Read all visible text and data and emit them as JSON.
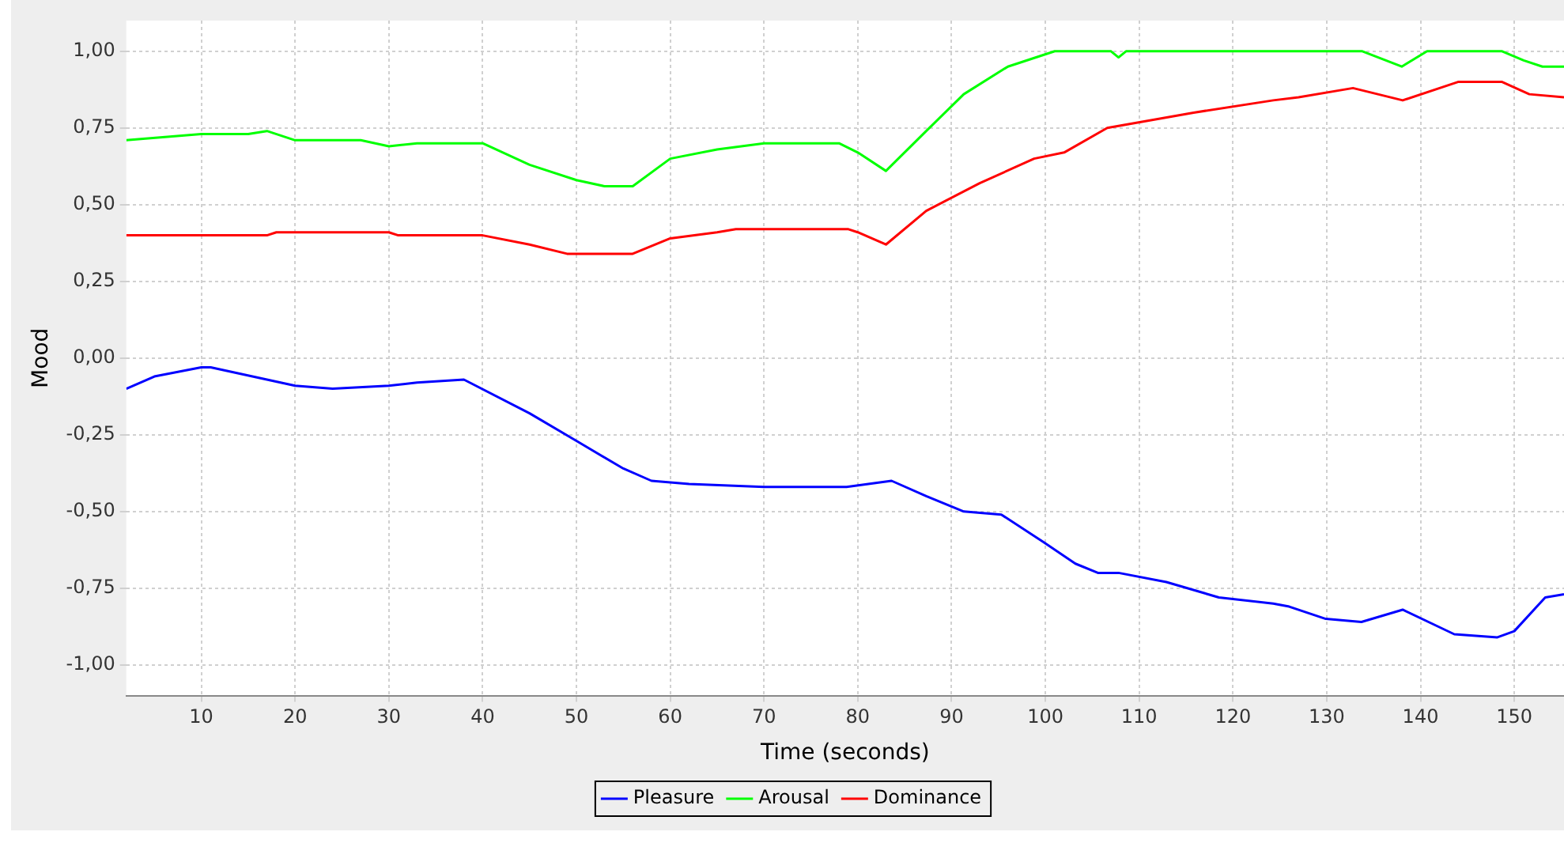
{
  "chart_data": {
    "type": "line",
    "xlabel": "Time (seconds)",
    "ylabel": "Mood",
    "xlim": [
      2,
      155.3
    ],
    "xticks": [
      10,
      20,
      30,
      40,
      50,
      60,
      70,
      80,
      90,
      100,
      110,
      120,
      130,
      140,
      150
    ],
    "ylim": [
      -1.1,
      1.1
    ],
    "yticks": [
      {
        "value": -1,
        "label": "-1,00"
      },
      {
        "value": -0.75,
        "label": "-0,75"
      },
      {
        "value": -0.5,
        "label": "-0,50"
      },
      {
        "value": -0.25,
        "label": "-0,25"
      },
      {
        "value": 0,
        "label": "0,00"
      },
      {
        "value": 0.25,
        "label": "0,25"
      },
      {
        "value": 0.5,
        "label": "0,50"
      },
      {
        "value": 0.75,
        "label": "0,75"
      },
      {
        "value": 1,
        "label": "1,00"
      }
    ],
    "grid": true,
    "legend": "bottom",
    "marker": "none",
    "line_style": "solid",
    "series": [
      {
        "name": "Pleasure",
        "color": "#0000ff",
        "x": [
          2,
          5,
          10,
          11,
          20,
          24,
          30,
          33,
          38,
          45,
          50,
          55,
          58,
          62,
          70,
          78.8,
          83.6,
          87.3,
          91.3,
          95.3,
          99.8,
          103.2,
          105.6,
          107.8,
          112.9,
          118.5,
          124.3,
          126,
          129.9,
          133.7,
          138.1,
          143.6,
          148.2,
          150,
          153.3,
          155.3
        ],
        "values": [
          -0.1,
          -0.06,
          -0.03,
          -0.03,
          -0.09,
          -0.1,
          -0.09,
          -0.08,
          -0.07,
          -0.18,
          -0.27,
          -0.36,
          -0.4,
          -0.41,
          -0.42,
          -0.42,
          -0.4,
          -0.45,
          -0.5,
          -0.51,
          -0.6,
          -0.67,
          -0.7,
          -0.7,
          -0.73,
          -0.78,
          -0.8,
          -0.81,
          -0.85,
          -0.86,
          -0.82,
          -0.9,
          -0.91,
          -0.89,
          -0.78,
          -0.77
        ]
      },
      {
        "name": "Arousal",
        "color": "#00ff00",
        "x": [
          2,
          10,
          15,
          17,
          20,
          27,
          30,
          33,
          40,
          45,
          50,
          53,
          56,
          60,
          65,
          70,
          78,
          80,
          83,
          87.3,
          91.3,
          96,
          101,
          107,
          107.8,
          108.6,
          133.8,
          138,
          140.7,
          148.7,
          151,
          153,
          155.3
        ],
        "values": [
          0.71,
          0.73,
          0.73,
          0.74,
          0.71,
          0.71,
          0.69,
          0.7,
          0.7,
          0.63,
          0.58,
          0.56,
          0.56,
          0.65,
          0.68,
          0.7,
          0.7,
          0.67,
          0.61,
          0.74,
          0.86,
          0.95,
          1,
          1,
          0.98,
          1,
          1,
          0.95,
          1,
          1,
          0.97,
          0.95,
          0.95
        ]
      },
      {
        "name": "Dominance",
        "color": "#ff0000",
        "x": [
          2,
          17,
          18,
          30,
          31,
          40,
          45,
          49,
          56,
          60,
          65,
          67,
          79,
          80,
          83,
          87.3,
          93,
          98.8,
          102,
          106.6,
          115.8,
          124.3,
          127,
          132.8,
          138.1,
          144,
          148.7,
          151.6,
          155.3
        ],
        "values": [
          0.4,
          0.4,
          0.41,
          0.41,
          0.4,
          0.4,
          0.37,
          0.34,
          0.34,
          0.39,
          0.41,
          0.42,
          0.42,
          0.41,
          0.37,
          0.48,
          0.57,
          0.65,
          0.67,
          0.75,
          0.8,
          0.84,
          0.85,
          0.88,
          0.84,
          0.9,
          0.9,
          0.86,
          0.85
        ]
      }
    ]
  }
}
